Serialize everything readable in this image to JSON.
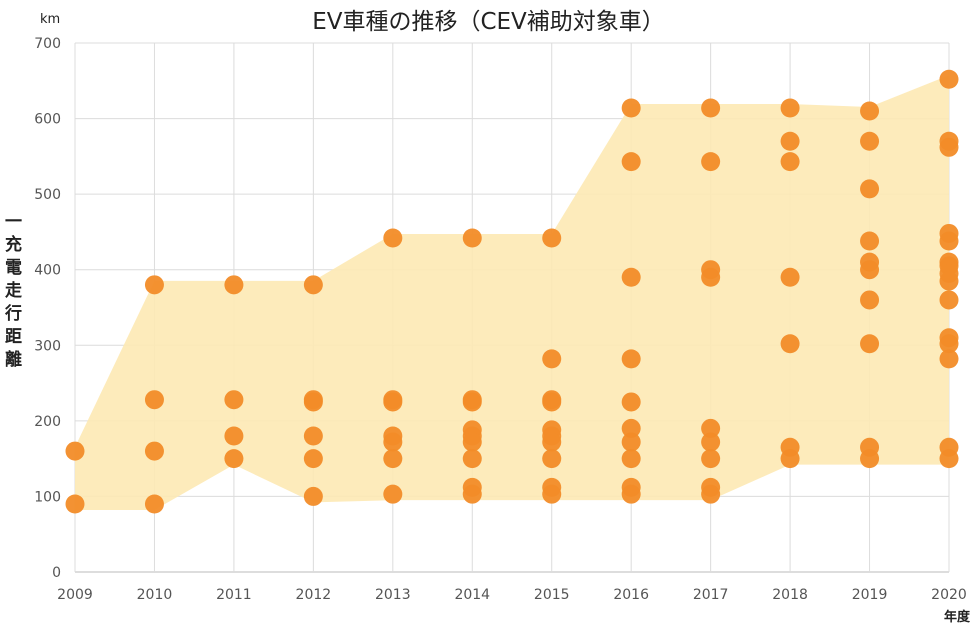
{
  "chart_data": {
    "type": "scatter",
    "title": "EV車種の推移（CEV補助対象車）",
    "ylabel": "一充電走行距離",
    "yunit": "km",
    "xlabel": "年度",
    "ylim": [
      0,
      700
    ],
    "yticks": [
      0,
      100,
      200,
      300,
      400,
      500,
      600,
      700
    ],
    "categories": [
      "2009",
      "2010",
      "2011",
      "2012",
      "2013",
      "2014",
      "2015",
      "2016",
      "2017",
      "2018",
      "2019",
      "2020"
    ],
    "grid": true,
    "colors": {
      "point": "#f28c28",
      "band": "#fde9b4"
    },
    "series": [
      {
        "values": [
          [
            160,
            90
          ],
          [
            380,
            228,
            160,
            90
          ],
          [
            380,
            228,
            180,
            150
          ],
          [
            380,
            228,
            225,
            180,
            150,
            100
          ],
          [
            442,
            228,
            225,
            180,
            172,
            150,
            103
          ],
          [
            442,
            228,
            225,
            188,
            180,
            172,
            150,
            112,
            103
          ],
          [
            442,
            282,
            228,
            225,
            188,
            180,
            172,
            150,
            112,
            103
          ],
          [
            614,
            543,
            390,
            282,
            225,
            190,
            172,
            150,
            112,
            103
          ],
          [
            614,
            543,
            400,
            390,
            190,
            172,
            150,
            112,
            103
          ],
          [
            614,
            570,
            543,
            390,
            302,
            165,
            150
          ],
          [
            610,
            570,
            507,
            438,
            410,
            400,
            360,
            302,
            165,
            150
          ],
          [
            652,
            570,
            562,
            448,
            438,
            410,
            405,
            395,
            385,
            360,
            310,
            302,
            282,
            165,
            150
          ]
        ]
      }
    ]
  }
}
